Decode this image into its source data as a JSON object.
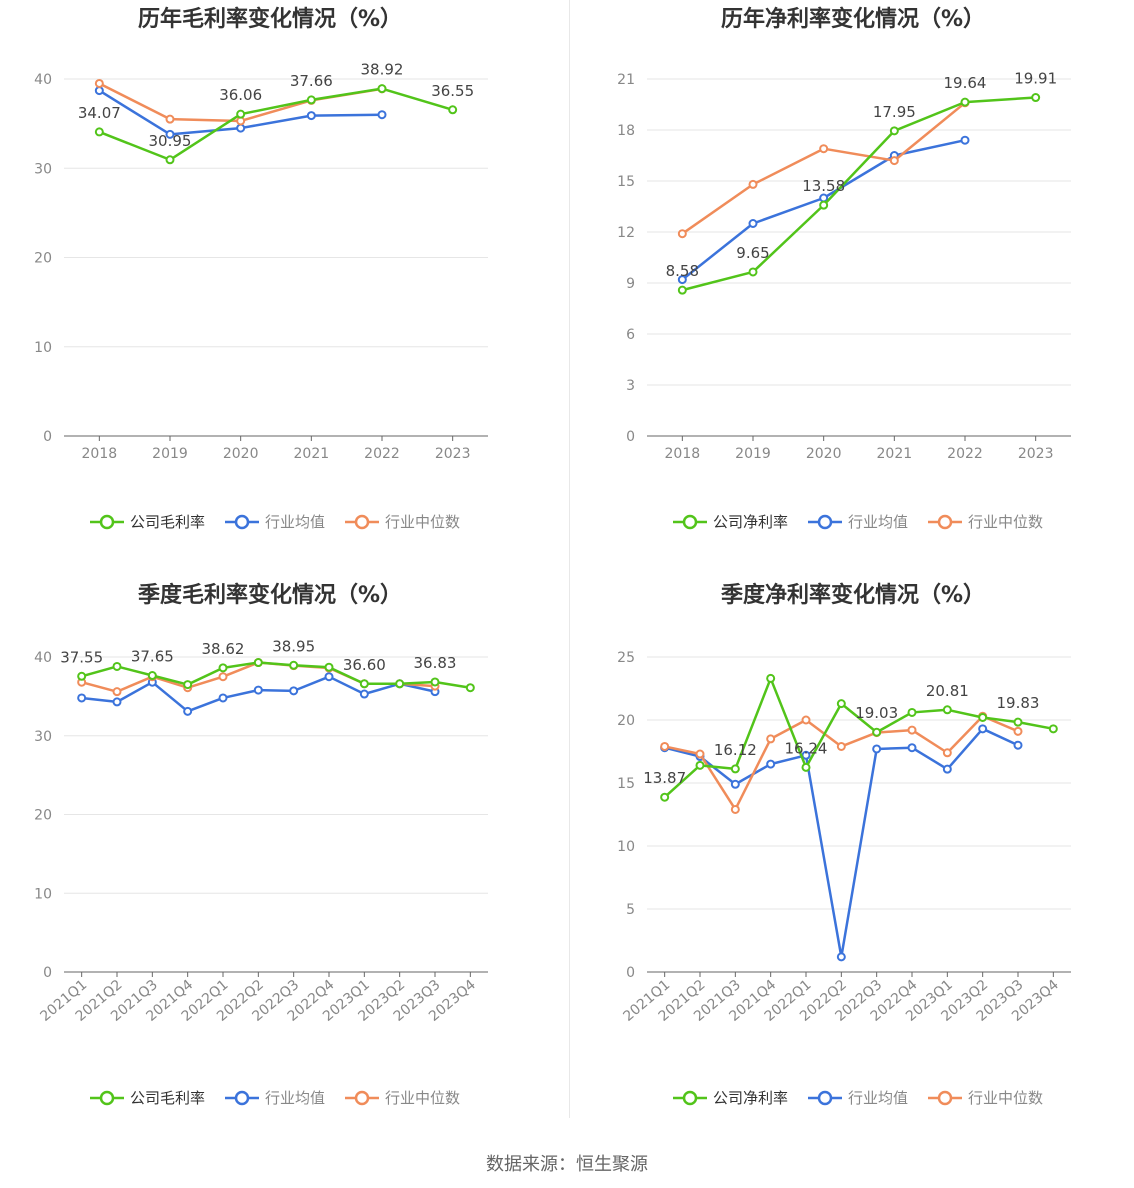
{
  "source_text": "数据来源：恒生聚源",
  "colors": {
    "company": "#52c41a",
    "avg": "#3b73db",
    "median": "#f08c5a"
  },
  "chart_data": [
    {
      "type": "line",
      "title": "历年毛利率变化情况（%）",
      "categories": [
        "2018",
        "2019",
        "2020",
        "2021",
        "2022",
        "2023"
      ],
      "ylim": [
        0,
        40
      ],
      "yticks": [
        0,
        10,
        20,
        30,
        40
      ],
      "rotate_x_labels": false,
      "series": [
        {
          "name": "公司毛利率",
          "key": "company",
          "values": [
            34.07,
            30.95,
            36.06,
            37.66,
            38.92,
            36.55
          ],
          "labels": [
            true,
            true,
            true,
            true,
            true,
            true
          ]
        },
        {
          "name": "行业均值",
          "key": "avg",
          "values": [
            38.7,
            33.8,
            34.5,
            35.9,
            36.0,
            null
          ]
        },
        {
          "name": "行业中位数",
          "key": "median",
          "values": [
            39.5,
            35.5,
            35.3,
            37.6,
            38.9,
            null
          ]
        }
      ]
    },
    {
      "type": "line",
      "title": "历年净利率变化情况（%）",
      "categories": [
        "2018",
        "2019",
        "2020",
        "2021",
        "2022",
        "2023"
      ],
      "ylim": [
        0,
        21
      ],
      "yticks": [
        0,
        3,
        6,
        9,
        12,
        15,
        18,
        21
      ],
      "rotate_x_labels": false,
      "series": [
        {
          "name": "公司净利率",
          "key": "company",
          "values": [
            8.58,
            9.65,
            13.58,
            17.95,
            19.64,
            19.91
          ],
          "labels": [
            true,
            true,
            true,
            true,
            true,
            true
          ]
        },
        {
          "name": "行业均值",
          "key": "avg",
          "values": [
            9.2,
            12.5,
            14.0,
            16.5,
            17.4,
            null
          ]
        },
        {
          "name": "行业中位数",
          "key": "median",
          "values": [
            11.9,
            14.8,
            16.9,
            16.2,
            19.6,
            null
          ]
        }
      ]
    },
    {
      "type": "line",
      "title": "季度毛利率变化情况（%）",
      "categories": [
        "2021Q1",
        "2021Q2",
        "2021Q3",
        "2021Q4",
        "2022Q1",
        "2022Q2",
        "2022Q3",
        "2022Q4",
        "2023Q1",
        "2023Q2",
        "2023Q3",
        "2023Q4"
      ],
      "ylim": [
        0,
        40
      ],
      "yticks": [
        0,
        10,
        20,
        30,
        40
      ],
      "rotate_x_labels": true,
      "series": [
        {
          "name": "公司毛利率",
          "key": "company",
          "values": [
            37.55,
            38.8,
            37.65,
            36.5,
            38.62,
            39.3,
            38.95,
            38.7,
            36.6,
            36.6,
            36.83,
            36.1
          ],
          "labels": [
            true,
            false,
            true,
            false,
            true,
            false,
            true,
            false,
            true,
            false,
            true,
            false
          ]
        },
        {
          "name": "行业均值",
          "key": "avg",
          "values": [
            34.8,
            34.3,
            36.8,
            33.1,
            34.8,
            35.8,
            35.7,
            37.5,
            35.3,
            36.6,
            35.6,
            null
          ]
        },
        {
          "name": "行业中位数",
          "key": "median",
          "values": [
            36.8,
            35.6,
            37.5,
            36.1,
            37.5,
            39.3,
            38.9,
            38.6,
            36.6,
            36.6,
            36.3,
            null
          ]
        }
      ]
    },
    {
      "type": "line",
      "title": "季度净利率变化情况（%）",
      "categories": [
        "2021Q1",
        "2021Q2",
        "2021Q3",
        "2021Q4",
        "2022Q1",
        "2022Q2",
        "2022Q3",
        "2022Q4",
        "2023Q1",
        "2023Q2",
        "2023Q3",
        "2023Q4"
      ],
      "ylim": [
        0,
        25
      ],
      "yticks": [
        0,
        5,
        10,
        15,
        20,
        25
      ],
      "rotate_x_labels": true,
      "series": [
        {
          "name": "公司净利率",
          "key": "company",
          "values": [
            13.87,
            16.4,
            16.12,
            23.3,
            16.24,
            21.3,
            19.03,
            20.6,
            20.81,
            20.2,
            19.83,
            19.3
          ],
          "labels": [
            true,
            false,
            true,
            false,
            true,
            false,
            true,
            false,
            true,
            false,
            true,
            false
          ]
        },
        {
          "name": "行业均值",
          "key": "avg",
          "values": [
            17.8,
            17.1,
            14.9,
            16.5,
            17.2,
            1.2,
            17.7,
            17.8,
            16.1,
            19.3,
            18.0,
            null
          ]
        },
        {
          "name": "行业中位数",
          "key": "median",
          "values": [
            17.9,
            17.3,
            12.9,
            18.5,
            20.0,
            17.9,
            19.0,
            19.2,
            17.4,
            20.3,
            19.1,
            null
          ]
        }
      ]
    }
  ]
}
